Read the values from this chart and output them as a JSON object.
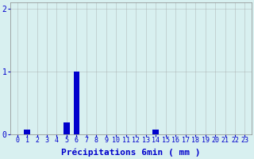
{
  "hours": [
    0,
    1,
    2,
    3,
    4,
    5,
    6,
    7,
    8,
    9,
    10,
    11,
    12,
    13,
    14,
    15,
    16,
    17,
    18,
    19,
    20,
    21,
    22,
    23
  ],
  "values": [
    0,
    0.07,
    0,
    0,
    0,
    0.18,
    1.0,
    0.0,
    0.0,
    0.0,
    0.0,
    0.0,
    0.0,
    0.0,
    0.07,
    0,
    0,
    0,
    0,
    0,
    0,
    0,
    0,
    0
  ],
  "bar_color": "#0000cc",
  "bg_color": "#d8f0f0",
  "grid_color": "#999999",
  "ylabel_ticks": [
    0,
    1,
    2
  ],
  "ylim": [
    0,
    2.1
  ],
  "xlabel": "Précipitations 6min ( mm )",
  "xlabel_color": "#0000cc",
  "tick_color": "#0000cc",
  "xlabel_fontsize": 8,
  "tick_fontsize": 6
}
